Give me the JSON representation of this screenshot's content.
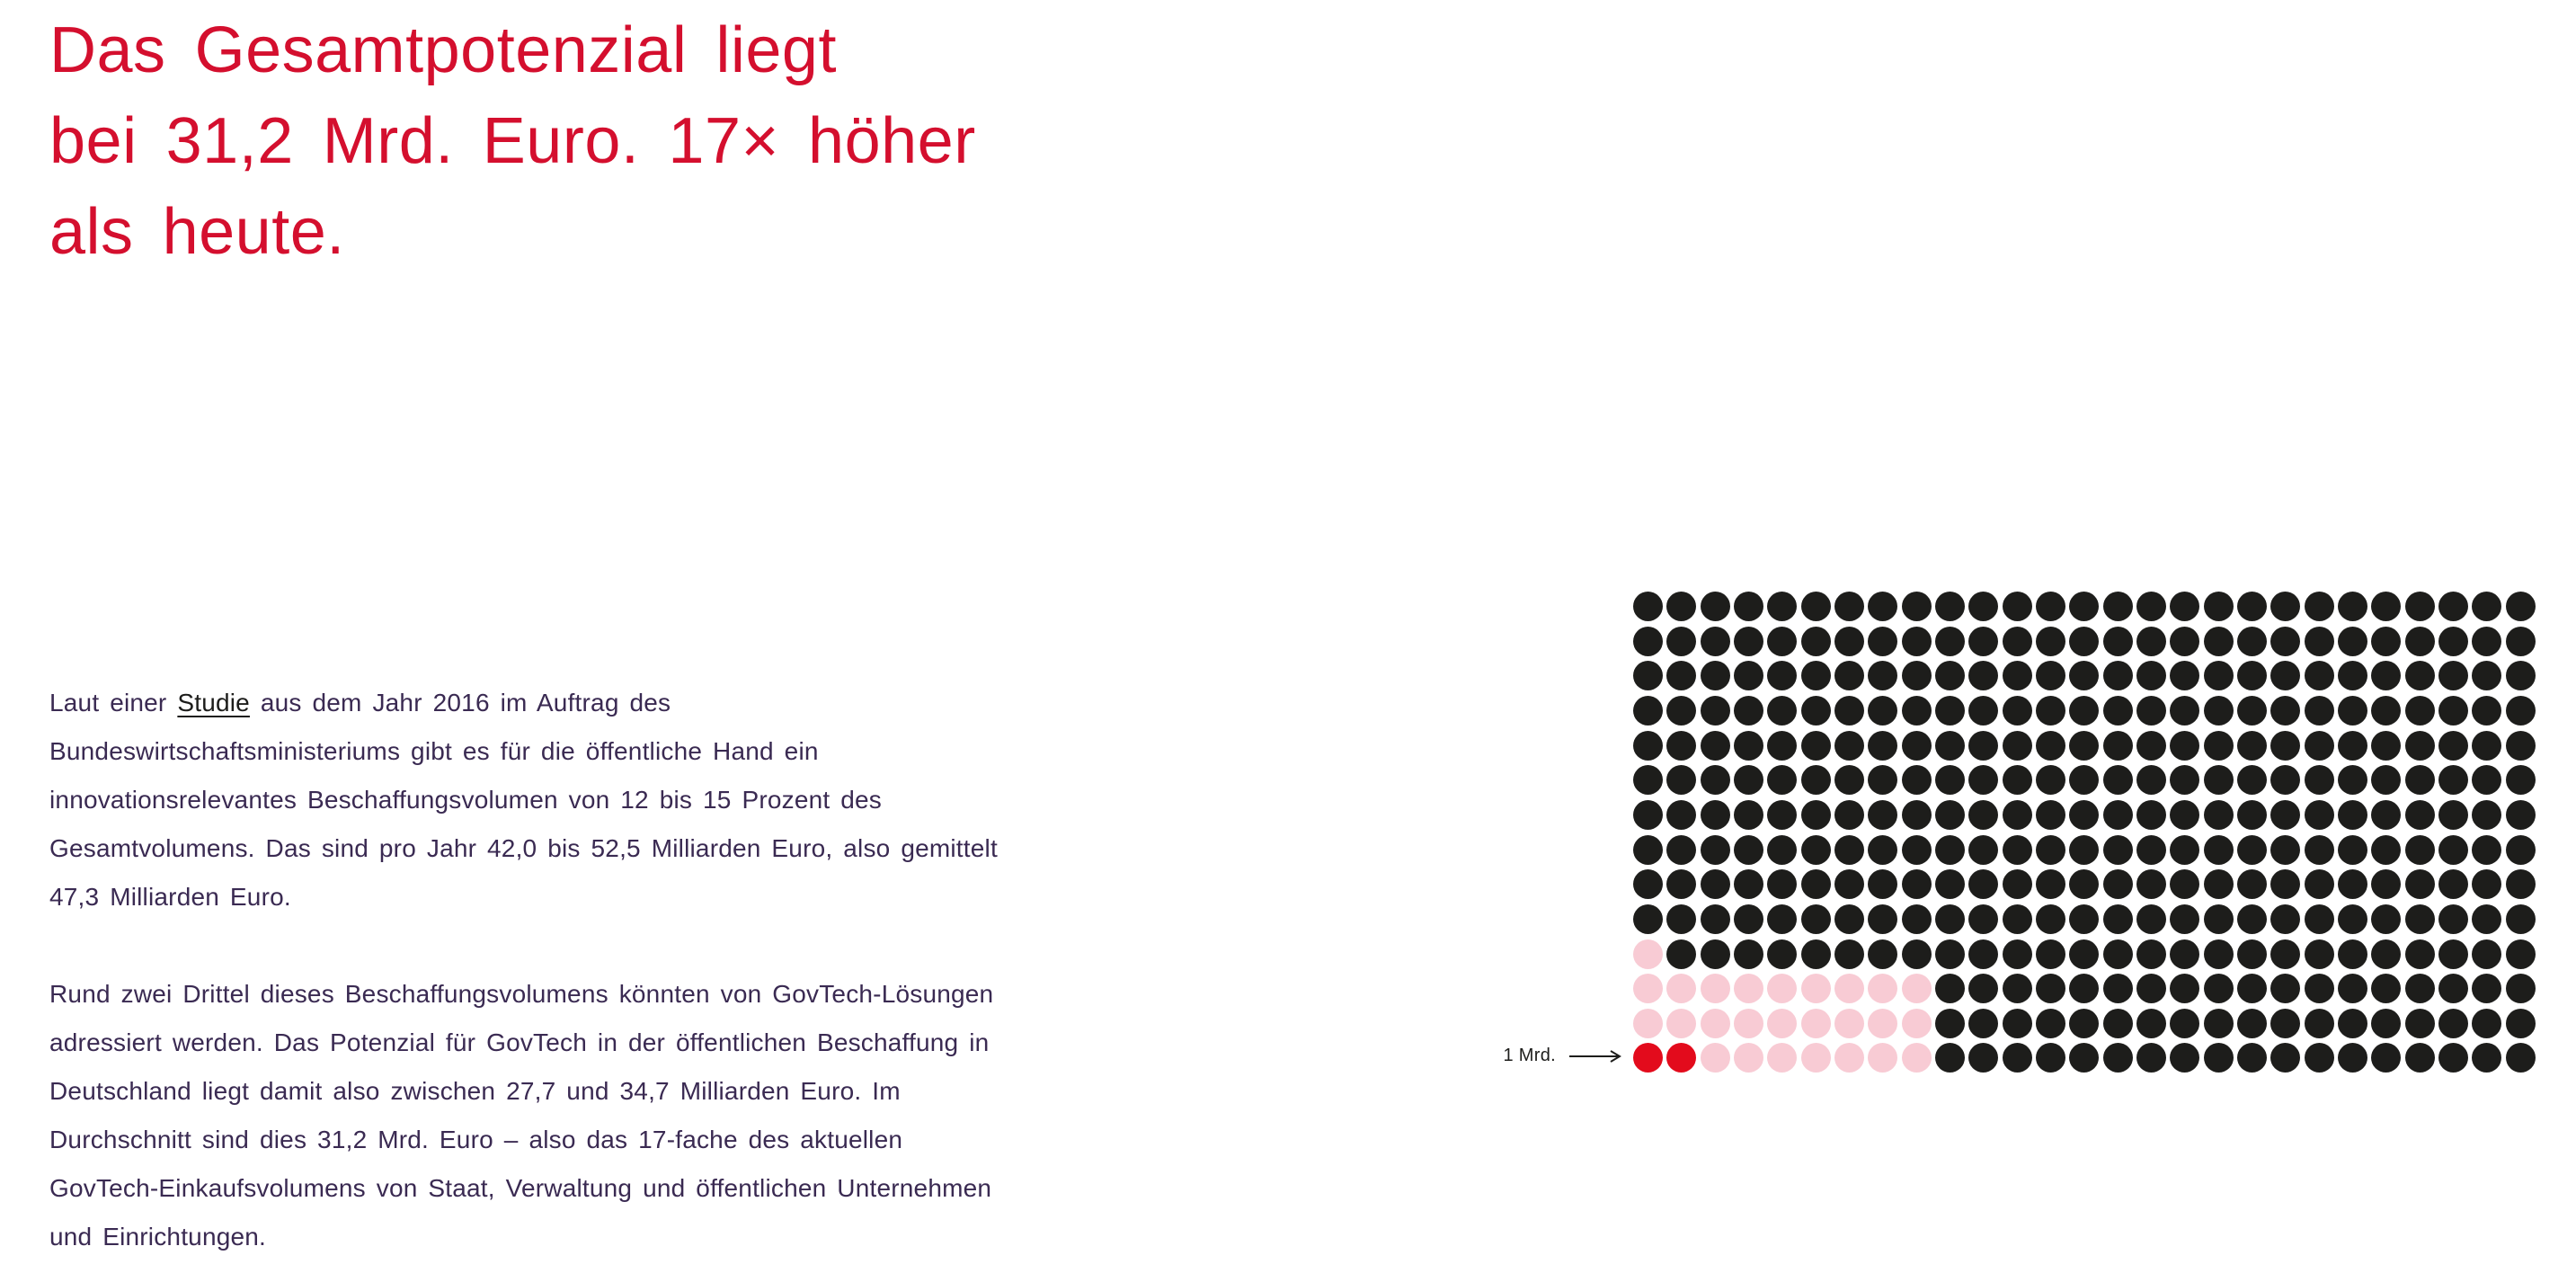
{
  "heading": {
    "color": "#d40f2e",
    "lines": [
      "Das Gesamtpotenzial liegt",
      "bei 31,2 Mrd. Euro. 17× höher",
      "als heute."
    ]
  },
  "body": {
    "color": "#3a2a52",
    "link_color": "#1d1d1b",
    "paragraphs": [
      {
        "lines": [
          [
            {
              "t": "Laut einer "
            },
            {
              "t": "Studie",
              "link": true
            },
            {
              "t": " aus dem Jahr 2016 im Auftrag des"
            }
          ],
          [
            {
              "t": "Bundeswirtschaftsministeriums gibt es für die öffentliche Hand ein"
            }
          ],
          [
            {
              "t": "innovationsrelevantes Beschaffungsvolumen von 12 bis 15 Prozent des"
            }
          ],
          [
            {
              "t": "Gesamtvolumens. Das sind pro Jahr 42,0 bis 52,5 Milliarden Euro, also gemittelt"
            }
          ],
          [
            {
              "t": "47,3 Milliarden Euro."
            }
          ]
        ]
      },
      {
        "lines": [
          [
            {
              "t": "Rund zwei Drittel dieses Beschaffungsvolumens könnten von GovTech-Lösungen"
            }
          ],
          [
            {
              "t": "adressiert werden. Das Potenzial für GovTech in der öffentlichen Beschaffung in"
            }
          ],
          [
            {
              "t": "Deutschland liegt damit also zwischen 27,7 und 34,7 Milliarden Euro. Im"
            }
          ],
          [
            {
              "t": "Durchschnitt sind dies 31,2 Mrd. Euro – also das 17-fache des aktuellen"
            }
          ],
          [
            {
              "t": "GovTech-Einkaufsvolumens von Staat, Verwaltung und öffentlichen Unternehmen"
            }
          ],
          [
            {
              "t": "und Einrichtungen."
            }
          ]
        ]
      }
    ]
  },
  "chart_data": {
    "type": "waffle",
    "rows": 14,
    "cols": 27,
    "total_dots": 378,
    "unit_per_dot": "1 Mrd. Euro",
    "annotation": {
      "label": "1 Mrd.",
      "points_to": "first red dot of bottom row"
    },
    "colored_from_bottom_left": {
      "colored_per_row_from_bottom": [
        9,
        9,
        9,
        1
      ],
      "red_in_bottom_row": 2
    },
    "counts": {
      "black": 350,
      "pink": 26,
      "red": 2
    },
    "colors": {
      "black": "#1d1d1b",
      "pink": "#f8cbd4",
      "red": "#e30b1c"
    },
    "legend_position": "none",
    "grid": false
  }
}
